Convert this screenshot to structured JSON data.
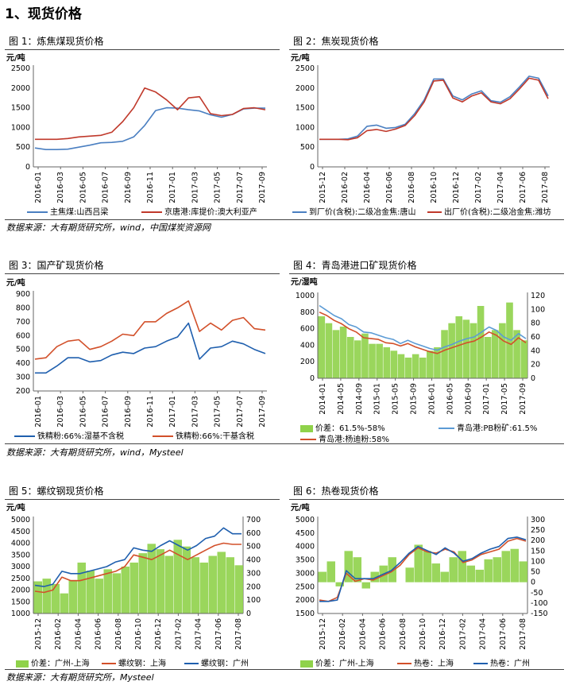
{
  "heading": "1、现货价格",
  "source1": "数据来源：大有期货研究所，wind，中国煤炭资源网",
  "source2": "数据来源：大有期货研究所，wind，Mysteel",
  "source3": "数据来源：大有期货研究所，Mysteel",
  "colors": {
    "blue": "#4a7fc1",
    "red": "#c0392b",
    "blue2": "#1f5fae",
    "red2": "#d2502a",
    "green": "#8fd24a",
    "lightblue": "#5b9bd5",
    "axis": "#666666",
    "grid": "#e6e6e6"
  },
  "chart_data": [
    {
      "id": "fig1",
      "type": "line",
      "title_num": "图 1：",
      "title": "炼焦煤现货价格",
      "unit": "元/吨",
      "ylim": [
        0,
        2500
      ],
      "yticks": [
        0,
        500,
        1000,
        1500,
        2000,
        2500
      ],
      "xticks": [
        "2016-01",
        "2016-03",
        "2016-05",
        "2016-07",
        "2016-09",
        "2016-11",
        "2017-01",
        "2017-03",
        "2017-05",
        "2017-07",
        "2017-09"
      ],
      "series": [
        {
          "name": "主焦煤:山西吕梁",
          "color": "blue",
          "values": [
            480,
            440,
            440,
            450,
            500,
            550,
            610,
            620,
            650,
            760,
            1050,
            1430,
            1500,
            1490,
            1450,
            1420,
            1320,
            1260,
            1330,
            1470,
            1490,
            1490
          ]
        },
        {
          "name": "京唐港:库提价:澳大利亚产",
          "color": "red",
          "values": [
            700,
            700,
            700,
            720,
            760,
            780,
            800,
            880,
            1150,
            1500,
            2000,
            1900,
            1700,
            1450,
            1750,
            1780,
            1350,
            1300,
            1330,
            1480,
            1500,
            1450
          ]
        }
      ]
    },
    {
      "id": "fig2",
      "type": "line",
      "title_num": "图 2：",
      "title": "焦炭现货价格",
      "unit": "元/吨",
      "ylim": [
        0,
        2500
      ],
      "yticks": [
        0,
        500,
        1000,
        1500,
        2000,
        2500
      ],
      "xticks": [
        "2015-12",
        "2016-02",
        "2016-04",
        "2016-06",
        "2016-08",
        "2016-10",
        "2016-12",
        "2017-02",
        "2017-04",
        "2017-06",
        "2017-08"
      ],
      "series": [
        {
          "name": "到厂价(含税):二级冶金焦:唐山",
          "color": "blue",
          "values": [
            700,
            700,
            700,
            710,
            780,
            1030,
            1060,
            980,
            1000,
            1080,
            1350,
            1700,
            2230,
            2230,
            1800,
            1700,
            1850,
            1930,
            1680,
            1640,
            1780,
            2030,
            2300,
            2250,
            1800
          ]
        },
        {
          "name": "出厂价(含税):二级冶金焦:潍坊",
          "color": "red",
          "values": [
            700,
            700,
            700,
            690,
            740,
            920,
            950,
            900,
            960,
            1050,
            1300,
            1650,
            2180,
            2200,
            1750,
            1650,
            1800,
            1880,
            1650,
            1600,
            1730,
            1980,
            2250,
            2200,
            1730
          ]
        }
      ]
    },
    {
      "id": "fig3",
      "type": "line",
      "title_num": "图 3：",
      "title": "国产矿现货价格",
      "unit": "元/吨",
      "ylim": [
        200,
        900
      ],
      "yticks": [
        200,
        300,
        400,
        500,
        600,
        700,
        800,
        900
      ],
      "xticks": [
        "2016-01",
        "2016-03",
        "2016-05",
        "2016-07",
        "2016-09",
        "2016-11",
        "2017-01",
        "2017-03",
        "2017-05",
        "2017-07",
        "2017-09"
      ],
      "series": [
        {
          "name": "铁精粉:66%:湿基不含税",
          "color": "blue2",
          "values": [
            330,
            330,
            380,
            440,
            440,
            410,
            420,
            460,
            480,
            470,
            510,
            520,
            560,
            590,
            690,
            430,
            510,
            520,
            560,
            540,
            500,
            470
          ]
        },
        {
          "name": "铁精粉:66%:干基含税",
          "color": "red2",
          "values": [
            430,
            440,
            520,
            560,
            570,
            500,
            520,
            560,
            610,
            600,
            700,
            700,
            760,
            800,
            850,
            630,
            690,
            640,
            710,
            730,
            650,
            640
          ]
        }
      ]
    },
    {
      "id": "fig4",
      "type": "combo",
      "title_num": "图 4：",
      "title": "青岛港进口矿现货价格",
      "unit": "元/湿吨",
      "ylim": [
        0,
        1000
      ],
      "yticks": [
        0,
        200,
        400,
        600,
        800,
        1000
      ],
      "y2lim": [
        0,
        120
      ],
      "y2ticks": [
        0,
        20,
        40,
        60,
        80,
        100,
        120
      ],
      "xticks": [
        "2014-01",
        "2014-05",
        "2014-09",
        "2015-01",
        "2015-05",
        "2015-09",
        "2016-01",
        "2016-05",
        "2016-09",
        "2017-01",
        "2017-05",
        "2017-09"
      ],
      "bars": {
        "name": "价差：61.5%-58%",
        "color": "green",
        "values": [
          90,
          80,
          70,
          75,
          60,
          55,
          65,
          50,
          50,
          45,
          40,
          35,
          30,
          35,
          30,
          40,
          45,
          70,
          80,
          90,
          85,
          80,
          105,
          60,
          70,
          80,
          110,
          70,
          55
        ]
      },
      "series": [
        {
          "name": "青岛港:PB粉矿:61.5%",
          "color": "lightblue",
          "values": [
            880,
            820,
            760,
            720,
            650,
            620,
            560,
            550,
            520,
            490,
            470,
            420,
            460,
            420,
            390,
            360,
            340,
            380,
            410,
            450,
            480,
            500,
            560,
            620,
            580,
            500,
            460,
            540,
            480
          ]
        },
        {
          "name": "青岛港:杨迪粉:58%",
          "color": "red2",
          "values": [
            800,
            760,
            700,
            660,
            600,
            560,
            490,
            480,
            470,
            430,
            420,
            390,
            420,
            380,
            350,
            320,
            300,
            340,
            370,
            400,
            430,
            450,
            500,
            560,
            520,
            450,
            410,
            490,
            430
          ]
        }
      ]
    },
    {
      "id": "fig5",
      "type": "combo",
      "title_num": "图 5：",
      "title": "螺纹钢现货价格",
      "unit": "元/吨",
      "ylim": [
        1000,
        5000
      ],
      "yticks": [
        1000,
        1500,
        2000,
        2500,
        3000,
        3500,
        4000,
        4500,
        5000
      ],
      "y2lim": [
        0,
        700
      ],
      "y2ticks": [
        0,
        100,
        200,
        300,
        400,
        500,
        600,
        700
      ],
      "xticks": [
        "2015-12",
        "2016-02",
        "2016-04",
        "2016-06",
        "2016-08",
        "2016-10",
        "2016-12",
        "2017-02",
        "2017-04",
        "2017-06",
        "2017-08"
      ],
      "bars": {
        "name": "价差：广州-上海",
        "color": "green",
        "values": [
          240,
          260,
          220,
          150,
          250,
          380,
          320,
          260,
          330,
          300,
          350,
          380,
          450,
          520,
          480,
          430,
          550,
          500,
          420,
          380,
          430,
          460,
          420,
          360
        ]
      },
      "series": [
        {
          "name": "螺纹钢：上海",
          "color": "red2",
          "values": [
            1950,
            1900,
            2000,
            2550,
            2400,
            2400,
            2500,
            2600,
            2700,
            2800,
            3000,
            3500,
            3400,
            3300,
            3500,
            3700,
            3500,
            3300,
            3500,
            3700,
            3900,
            4000,
            3950,
            3950
          ]
        },
        {
          "name": "螺纹钢：广州",
          "color": "blue2",
          "values": [
            2200,
            2150,
            2250,
            2800,
            2700,
            2700,
            2800,
            2900,
            3000,
            3200,
            3300,
            3800,
            3700,
            3650,
            3900,
            4100,
            3900,
            3700,
            3900,
            4200,
            4300,
            4650,
            4400,
            4400
          ]
        }
      ]
    },
    {
      "id": "fig6",
      "type": "combo",
      "title_num": "图 6：",
      "title": "热卷现货价格",
      "unit": "元/吨",
      "ylim": [
        1500,
        5000
      ],
      "yticks": [
        1500,
        2000,
        2500,
        3000,
        3500,
        4000,
        4500,
        5000
      ],
      "y2lim": [
        -150,
        300
      ],
      "y2ticks": [
        -150,
        -100,
        -50,
        0,
        50,
        100,
        150,
        200,
        250,
        300
      ],
      "xticks": [
        "2015-12",
        "2016-02",
        "2016-04",
        "2016-06",
        "2016-08",
        "2016-10",
        "2016-12",
        "2017-02",
        "2017-04",
        "2017-06",
        "2017-08"
      ],
      "bars": {
        "name": "价差：广州-上海",
        "color": "green",
        "values": [
          50,
          100,
          -20,
          150,
          120,
          -30,
          50,
          80,
          120,
          0,
          70,
          180,
          150,
          90,
          50,
          120,
          150,
          80,
          60,
          110,
          120,
          150,
          160,
          100
        ]
      },
      "series": [
        {
          "name": "热卷：上海",
          "color": "red2",
          "values": [
            2000,
            1950,
            2100,
            3000,
            2700,
            2800,
            2750,
            2900,
            3050,
            3300,
            3700,
            3950,
            3800,
            3750,
            3900,
            3800,
            3400,
            3500,
            3700,
            3800,
            3900,
            4200,
            4300,
            4200
          ]
        },
        {
          "name": "热卷：广州",
          "color": "blue2",
          "values": [
            1950,
            1950,
            2000,
            3100,
            2800,
            2800,
            2800,
            2950,
            3100,
            3400,
            3750,
            4000,
            3850,
            3700,
            3950,
            3750,
            3450,
            3550,
            3750,
            3900,
            4000,
            4300,
            4350,
            4250
          ]
        }
      ]
    }
  ]
}
